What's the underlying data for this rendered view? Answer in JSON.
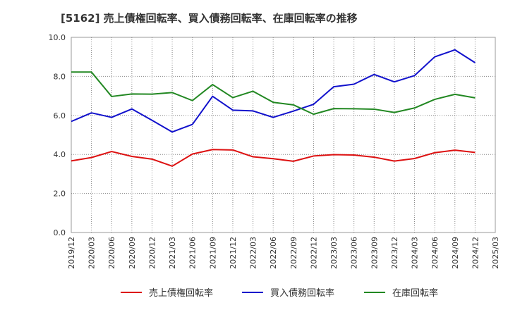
{
  "chart_data": {
    "type": "line",
    "title": "[5162]  売上債権回転率、買入債務回転率、在庫回転率の推移",
    "xlabel": "",
    "ylabel": "",
    "ylim": [
      0,
      10
    ],
    "yticks": [
      "0.0",
      "2.0",
      "4.0",
      "6.0",
      "8.0",
      "10.0"
    ],
    "grid": true,
    "legend_position": "bottom",
    "categories": [
      "2019/12",
      "2020/03",
      "2020/06",
      "2020/09",
      "2020/12",
      "2021/03",
      "2021/06",
      "2021/09",
      "2021/12",
      "2022/03",
      "2022/06",
      "2022/09",
      "2022/12",
      "2023/03",
      "2023/06",
      "2023/09",
      "2023/12",
      "2024/03",
      "2024/06",
      "2024/09",
      "2024/12",
      "2025/03"
    ],
    "series": [
      {
        "name": "売上債権回転率",
        "color": "#dd1111",
        "values": [
          3.67,
          3.84,
          4.15,
          3.9,
          3.76,
          3.4,
          4.02,
          4.25,
          4.23,
          3.88,
          3.78,
          3.65,
          3.92,
          3.99,
          3.97,
          3.86,
          3.66,
          3.79,
          4.09,
          4.22,
          4.1,
          null
        ]
      },
      {
        "name": "買入債務回転率",
        "color": "#1111cc",
        "values": [
          5.69,
          6.13,
          5.9,
          6.33,
          5.75,
          5.15,
          5.54,
          6.98,
          6.27,
          6.23,
          5.9,
          6.22,
          6.57,
          7.47,
          7.6,
          8.1,
          7.72,
          8.04,
          9.0,
          9.36,
          8.7,
          null
        ]
      },
      {
        "name": "在庫回転率",
        "color": "#228822",
        "values": [
          8.22,
          8.22,
          6.97,
          7.1,
          7.09,
          7.17,
          6.76,
          7.58,
          6.91,
          7.24,
          6.67,
          6.54,
          6.06,
          6.35,
          6.34,
          6.32,
          6.15,
          6.38,
          6.82,
          7.08,
          6.9,
          null
        ]
      }
    ]
  }
}
